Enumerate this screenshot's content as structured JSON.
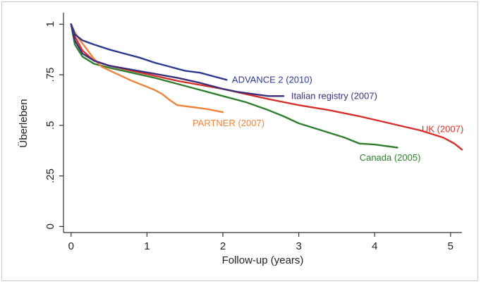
{
  "chart_data": {
    "type": "line",
    "title": "",
    "xlabel": "Follow-up (years)",
    "ylabel": "Überleben",
    "xlim": [
      -0.1,
      5.15
    ],
    "ylim": [
      -0.03,
      1.05
    ],
    "x_ticks": [
      0,
      1,
      2,
      3,
      4,
      5
    ],
    "x_tick_labels": [
      "0",
      "1",
      "2",
      "3",
      "4",
      "5"
    ],
    "y_ticks": [
      0,
      0.25,
      0.5,
      0.75,
      1
    ],
    "y_tick_labels": [
      "0",
      ".25",
      ".5",
      ".75",
      "1"
    ],
    "grid": false,
    "legend": "inline labels",
    "series": [
      {
        "name": "ADVANCE 2 (2010)",
        "color": "#2b3a8f",
        "x": [
          0,
          0.05,
          0.15,
          0.3,
          0.5,
          0.7,
          0.9,
          1.1,
          1.3,
          1.5,
          1.7,
          1.9,
          2.05
        ],
        "y": [
          1.0,
          0.95,
          0.92,
          0.9,
          0.875,
          0.855,
          0.835,
          0.81,
          0.79,
          0.77,
          0.76,
          0.74,
          0.725
        ]
      },
      {
        "name": "Italian registry (2007)",
        "color": "#3d2e7a",
        "x": [
          0,
          0.05,
          0.15,
          0.3,
          0.5,
          0.8,
          1.1,
          1.4,
          1.7,
          2.0,
          2.2,
          2.4,
          2.6,
          2.8
        ],
        "y": [
          1.0,
          0.92,
          0.855,
          0.82,
          0.795,
          0.775,
          0.755,
          0.735,
          0.71,
          0.68,
          0.665,
          0.655,
          0.645,
          0.645
        ]
      },
      {
        "name": "PARTNER (2007)",
        "color": "#f0843c",
        "x": [
          0,
          0.05,
          0.1,
          0.2,
          0.3,
          0.4,
          0.6,
          0.8,
          1.0,
          1.1,
          1.2,
          1.3,
          1.4,
          1.6,
          1.8,
          2.0
        ],
        "y": [
          1.0,
          0.96,
          0.93,
          0.88,
          0.83,
          0.79,
          0.755,
          0.72,
          0.69,
          0.675,
          0.655,
          0.625,
          0.6,
          0.59,
          0.58,
          0.565
        ]
      },
      {
        "name": "UK (2007)",
        "color": "#d6302c",
        "x": [
          0,
          0.05,
          0.15,
          0.3,
          0.5,
          0.8,
          1.1,
          1.4,
          1.7,
          2.0,
          2.3,
          2.6,
          3.0,
          3.4,
          3.8,
          4.2,
          4.6,
          4.9,
          5.05,
          5.15
        ],
        "y": [
          1.0,
          0.94,
          0.87,
          0.82,
          0.795,
          0.77,
          0.745,
          0.72,
          0.7,
          0.68,
          0.655,
          0.63,
          0.6,
          0.575,
          0.545,
          0.51,
          0.475,
          0.44,
          0.41,
          0.38
        ]
      },
      {
        "name": "Canada (2005)",
        "color": "#2f7f2f",
        "x": [
          0,
          0.05,
          0.15,
          0.3,
          0.5,
          0.8,
          1.1,
          1.4,
          1.7,
          2.0,
          2.3,
          2.6,
          2.8,
          3.0,
          3.3,
          3.6,
          3.8,
          4.0,
          4.2,
          4.3
        ],
        "y": [
          1.0,
          0.9,
          0.84,
          0.805,
          0.785,
          0.76,
          0.735,
          0.705,
          0.675,
          0.645,
          0.615,
          0.575,
          0.545,
          0.51,
          0.475,
          0.44,
          0.41,
          0.405,
          0.395,
          0.39
        ]
      }
    ],
    "annotations": [
      {
        "text": "ADVANCE 2 (2010)",
        "series": 0,
        "color": "#2b3a8f",
        "x": 2.12,
        "y": 0.725
      },
      {
        "text": "Italian registry (2007)",
        "series": 1,
        "color": "#3d2e7a",
        "x": 2.9,
        "y": 0.645
      },
      {
        "text": "PARTNER (2007)",
        "series": 2,
        "color": "#f0843c",
        "x": 1.6,
        "y": 0.51
      },
      {
        "text": "UK (2007)",
        "series": 3,
        "color": "#d6302c",
        "x": 4.62,
        "y": 0.48
      },
      {
        "text": "Canada (2005)",
        "series": 4,
        "color": "#2f7f2f",
        "x": 3.8,
        "y": 0.34
      }
    ]
  }
}
